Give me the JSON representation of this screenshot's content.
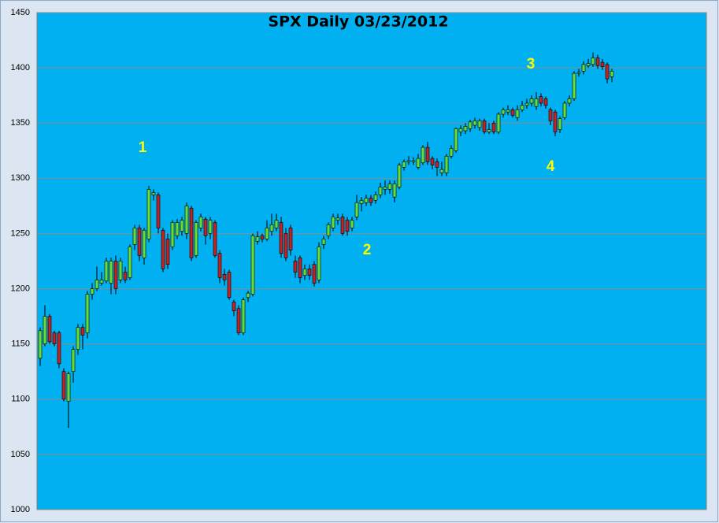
{
  "chart_data": {
    "type": "candlestick",
    "title": "SPX Daily 03/23/2012",
    "ylim": [
      1000,
      1450
    ],
    "yticks": [
      1000,
      1050,
      1100,
      1150,
      1200,
      1250,
      1300,
      1350,
      1400,
      1450
    ],
    "grid": true,
    "background": "#00b0f0",
    "up_color": "#66dd33",
    "down_color": "#cc1f1f",
    "annotation_color": "#ffff00",
    "annotations": [
      "1",
      "2",
      "3",
      "4"
    ],
    "open": [
      1137,
      1150,
      1175,
      1160,
      1160,
      1125,
      1098,
      1125,
      1145,
      1165,
      1160,
      1195,
      1200,
      1205,
      1207,
      1205,
      1225,
      1208,
      1215,
      1210,
      1240,
      1255,
      1228,
      1245,
      1285,
      1285,
      1253,
      1245,
      1238,
      1248,
      1252,
      1250,
      1273,
      1230,
      1255,
      1263,
      1250,
      1260,
      1232,
      1213,
      1215,
      1188,
      1182,
      1160,
      1192,
      1195,
      1243,
      1248,
      1245,
      1252,
      1255,
      1260,
      1250,
      1255,
      1225,
      1228,
      1212,
      1218,
      1222,
      1208,
      1240,
      1248,
      1255,
      1262,
      1265,
      1262,
      1255,
      1265,
      1277,
      1278,
      1282,
      1280,
      1285,
      1290,
      1290,
      1283,
      1292,
      1310,
      1315,
      1315,
      1310,
      1314,
      1328,
      1318,
      1315,
      1305,
      1305,
      1320,
      1325,
      1342,
      1343,
      1345,
      1348,
      1346,
      1352,
      1342,
      1350,
      1342,
      1358,
      1360,
      1362,
      1355,
      1362,
      1366,
      1368,
      1365,
      1374,
      1372,
      1362,
      1360,
      1344,
      1355,
      1368,
      1372,
      1395,
      1397,
      1402,
      1403,
      1409,
      1405,
      1403,
      1392
    ],
    "high": [
      1165,
      1185,
      1177,
      1162,
      1162,
      1128,
      1125,
      1148,
      1168,
      1168,
      1198,
      1205,
      1220,
      1215,
      1228,
      1228,
      1230,
      1228,
      1220,
      1240,
      1258,
      1258,
      1255,
      1293,
      1290,
      1287,
      1255,
      1250,
      1262,
      1263,
      1265,
      1278,
      1275,
      1262,
      1268,
      1265,
      1265,
      1262,
      1235,
      1218,
      1217,
      1190,
      1185,
      1192,
      1198,
      1250,
      1252,
      1250,
      1262,
      1268,
      1268,
      1265,
      1255,
      1258,
      1230,
      1230,
      1222,
      1222,
      1225,
      1242,
      1248,
      1260,
      1268,
      1268,
      1268,
      1265,
      1265,
      1285,
      1283,
      1285,
      1285,
      1288,
      1296,
      1298,
      1298,
      1298,
      1314,
      1317,
      1320,
      1319,
      1322,
      1330,
      1333,
      1320,
      1318,
      1315,
      1322,
      1330,
      1346,
      1348,
      1350,
      1353,
      1355,
      1354,
      1354,
      1350,
      1352,
      1360,
      1364,
      1366,
      1364,
      1366,
      1370,
      1372,
      1375,
      1378,
      1377,
      1374,
      1364,
      1362,
      1356,
      1370,
      1375,
      1397,
      1399,
      1406,
      1408,
      1414,
      1412,
      1408,
      1405,
      1399
    ],
    "low": [
      1130,
      1148,
      1150,
      1148,
      1128,
      1098,
      1074,
      1115,
      1140,
      1145,
      1155,
      1190,
      1198,
      1203,
      1205,
      1195,
      1195,
      1205,
      1205,
      1208,
      1235,
      1225,
      1222,
      1242,
      1280,
      1250,
      1215,
      1218,
      1235,
      1245,
      1248,
      1245,
      1225,
      1228,
      1252,
      1240,
      1245,
      1228,
      1205,
      1203,
      1190,
      1175,
      1158,
      1158,
      1188,
      1193,
      1240,
      1242,
      1243,
      1248,
      1252,
      1228,
      1225,
      1230,
      1210,
      1205,
      1208,
      1208,
      1202,
      1205,
      1236,
      1245,
      1252,
      1258,
      1248,
      1248,
      1252,
      1262,
      1270,
      1275,
      1275,
      1277,
      1282,
      1285,
      1286,
      1278,
      1290,
      1307,
      1312,
      1312,
      1308,
      1312,
      1312,
      1308,
      1302,
      1302,
      1302,
      1318,
      1323,
      1338,
      1340,
      1342,
      1345,
      1343,
      1340,
      1340,
      1340,
      1340,
      1355,
      1357,
      1355,
      1352,
      1360,
      1363,
      1365,
      1362,
      1365,
      1363,
      1348,
      1338,
      1341,
      1353,
      1365,
      1370,
      1392,
      1394,
      1400,
      1401,
      1399,
      1398,
      1386,
      1387
    ],
    "close": [
      1162,
      1175,
      1152,
      1150,
      1132,
      1100,
      1123,
      1145,
      1165,
      1158,
      1195,
      1200,
      1208,
      1208,
      1225,
      1225,
      1200,
      1225,
      1208,
      1238,
      1255,
      1230,
      1253,
      1290,
      1287,
      1255,
      1218,
      1222,
      1260,
      1260,
      1262,
      1275,
      1228,
      1260,
      1265,
      1248,
      1262,
      1230,
      1210,
      1208,
      1192,
      1180,
      1160,
      1190,
      1196,
      1248,
      1247,
      1245,
      1255,
      1258,
      1262,
      1232,
      1228,
      1235,
      1215,
      1210,
      1218,
      1212,
      1205,
      1238,
      1245,
      1258,
      1265,
      1264,
      1250,
      1252,
      1262,
      1278,
      1280,
      1282,
      1278,
      1285,
      1292,
      1292,
      1295,
      1295,
      1312,
      1315,
      1316,
      1316,
      1318,
      1328,
      1315,
      1312,
      1310,
      1308,
      1320,
      1327,
      1345,
      1345,
      1347,
      1351,
      1352,
      1352,
      1342,
      1344,
      1342,
      1358,
      1362,
      1362,
      1357,
      1362,
      1366,
      1368,
      1372,
      1372,
      1368,
      1366,
      1352,
      1342,
      1354,
      1368,
      1372,
      1395,
      1396,
      1403,
      1404,
      1409,
      1402,
      1401,
      1390,
      1397
    ]
  }
}
